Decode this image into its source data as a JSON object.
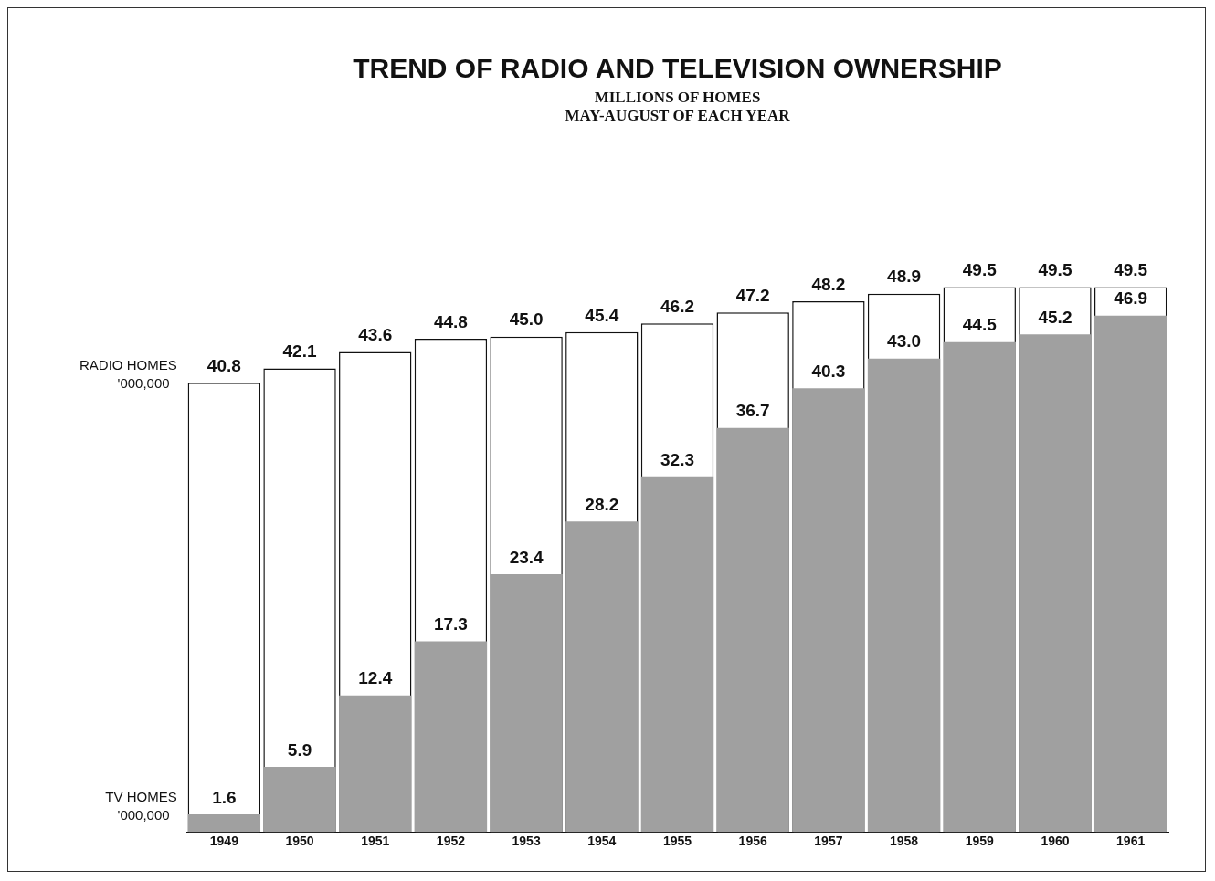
{
  "chart_data": {
    "type": "bar",
    "title": "TREND OF RADIO AND TELEVISION OWNERSHIP",
    "subtitle": "MILLIONS OF HOMES\nMAY-AUGUST OF EACH YEAR",
    "categories": [
      "1949",
      "1950",
      "1951",
      "1952",
      "1953",
      "1954",
      "1955",
      "1956",
      "1957",
      "1958",
      "1959",
      "1960",
      "1961"
    ],
    "series": [
      {
        "name": "RADIO HOMES '000,000",
        "color": "#ffffff",
        "values": [
          40.8,
          42.1,
          43.6,
          44.8,
          45.0,
          45.4,
          46.2,
          47.2,
          48.2,
          48.9,
          49.5,
          49.5,
          49.5
        ],
        "value_labels": [
          "40.8",
          "42.1",
          "43.6",
          "44.8",
          "45.0",
          "45.4",
          "46.2",
          "47.2",
          "48.2",
          "48.9",
          "49.5",
          "49.5",
          "49.5"
        ]
      },
      {
        "name": "TV HOMES '000,000",
        "color": "#a0a0a0",
        "values": [
          1.6,
          5.9,
          12.4,
          17.3,
          23.4,
          28.2,
          32.3,
          36.7,
          40.3,
          43.0,
          44.5,
          45.2,
          46.9
        ],
        "value_labels": [
          "1.6",
          "5.9",
          "12.4",
          "17.3",
          "23.4",
          "28.2",
          "32.3",
          "36.7",
          "40.3",
          "43.0",
          "44.5",
          "45.2",
          "46.9"
        ]
      }
    ],
    "legend": false,
    "grid": false
  }
}
